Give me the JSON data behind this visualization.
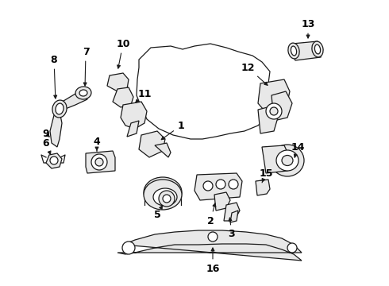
{
  "bg_color": "#ffffff",
  "line_color": "#1a1a1a",
  "label_color": "#000000",
  "fig_width": 4.9,
  "fig_height": 3.6,
  "dpi": 100,
  "lw": 0.9,
  "label_fontsize": 9,
  "label_fontweight": "bold"
}
